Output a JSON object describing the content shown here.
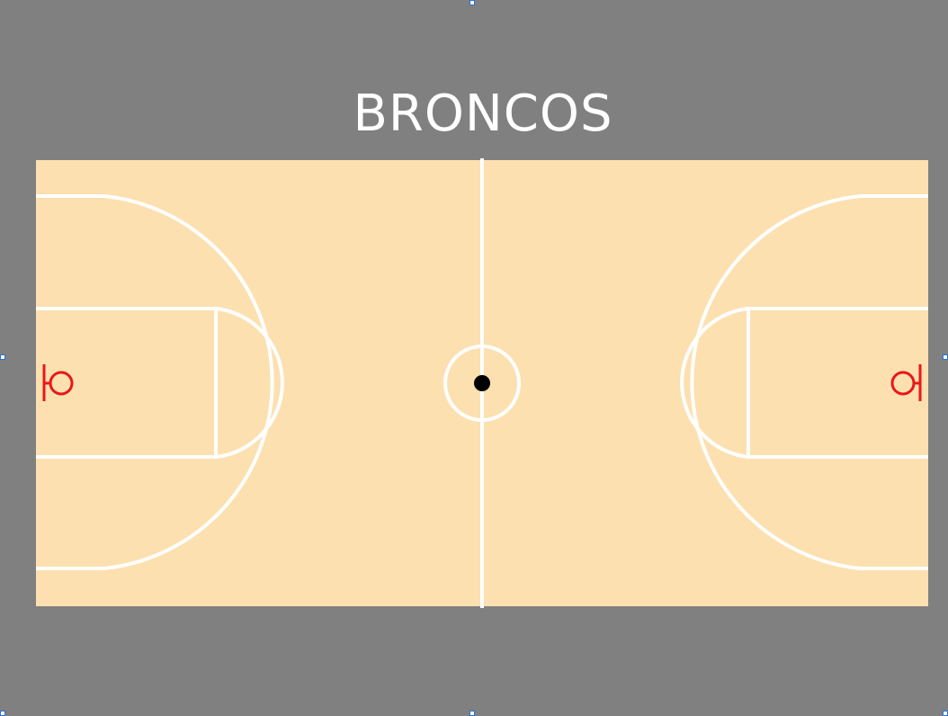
{
  "slide": {
    "title": "BRONCOS"
  },
  "colors": {
    "background": "#808080",
    "court_floor": "#fde0b0",
    "court_lines": "#ffffff",
    "hoop": "#e81818",
    "ball": "#000000",
    "selection_handle_border": "#2b6fd6"
  },
  "icons": [
    "basket-hoop-icon",
    "ball-icon"
  ]
}
